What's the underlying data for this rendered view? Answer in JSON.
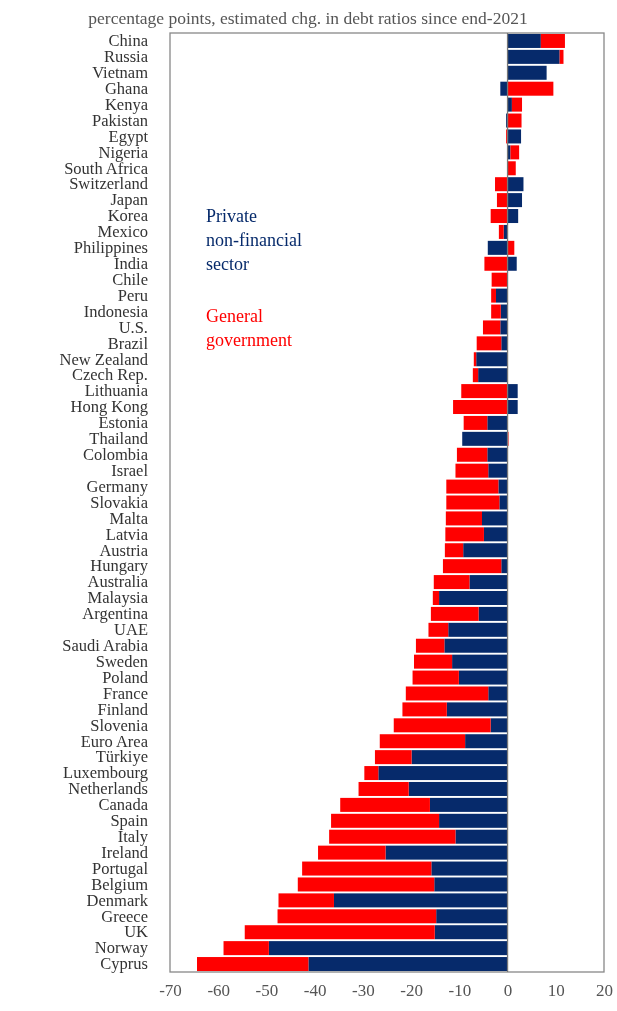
{
  "chart_data": {
    "type": "bar",
    "orientation": "horizontal",
    "stacked": true,
    "title": "percentage points, estimated chg. in debt ratios since end-2021",
    "categories": [
      "China",
      "Russia",
      "Vietnam",
      "Ghana",
      "Kenya",
      "Pakistan",
      "Egypt",
      "Nigeria",
      "South Africa",
      "Switzerland",
      "Japan",
      "Korea",
      "Mexico",
      "Philippines",
      "India",
      "Chile",
      "Peru",
      "Indonesia",
      "U.S.",
      "Brazil",
      "New Zealand",
      "Czech Rep.",
      "Lithuania",
      "Hong Kong",
      "Estonia",
      "Thailand",
      "Colombia",
      "Israel",
      "Germany",
      "Slovakia",
      "Malta",
      "Latvia",
      "Austria",
      "Hungary",
      "Australia",
      "Malaysia",
      "Argentina",
      "UAE",
      "Saudi Arabia",
      "Sweden",
      "Poland",
      "France",
      "Finland",
      "Slovenia",
      "Euro Area",
      "Türkiye",
      "Luxembourg",
      "Netherlands",
      "Canada",
      "Spain",
      "Italy",
      "Ireland",
      "Portugal",
      "Belgium",
      "Denmark",
      "Greece",
      "UK",
      "Norway",
      "Cyprus"
    ],
    "series": [
      {
        "name": "Private non-financial sector",
        "color": "#062a6b",
        "values": [
          6.9,
          10.8,
          8.1,
          -1.5,
          0.9,
          -0.3,
          2.8,
          0.6,
          0,
          3.3,
          3.0,
          2.2,
          -0.8,
          -4.1,
          1.9,
          0,
          -2.4,
          -1.4,
          -1.5,
          -1.3,
          -6.5,
          -6.1,
          2.1,
          2.1,
          -4.2,
          -9.4,
          -4.2,
          -4.0,
          -1.9,
          -1.7,
          -5.3,
          -4.9,
          -9.2,
          -1.3,
          -7.9,
          -14.2,
          -6.0,
          -12.3,
          -13.1,
          -11.5,
          -10.1,
          -4.0,
          -12.6,
          -3.5,
          -8.8,
          -19.9,
          -26.8,
          -20.5,
          -16.1,
          -14.2,
          -10.8,
          -25.3,
          -15.8,
          -15.2,
          -36.0,
          -14.8,
          -15.1,
          -49.5,
          -41.3
        ]
      },
      {
        "name": "General government",
        "color": "#ff0000",
        "values": [
          5.0,
          0.8,
          0,
          9.5,
          2.1,
          2.9,
          -0.3,
          1.8,
          1.7,
          -2.6,
          -2.2,
          -3.5,
          -1.0,
          1.4,
          -4.8,
          -3.3,
          -1.0,
          -2.0,
          -3.6,
          -5.1,
          -0.5,
          -1.1,
          -9.6,
          -11.3,
          -4.9,
          0.2,
          -6.3,
          -6.8,
          -10.8,
          -11.0,
          -7.5,
          -8.0,
          -3.8,
          -12.1,
          -7.4,
          -1.3,
          -9.9,
          -4.1,
          -5.9,
          -7.9,
          -9.6,
          -17.1,
          -9.2,
          -20.1,
          -17.7,
          -7.6,
          -2.9,
          -10.4,
          -18.6,
          -22.4,
          -26.2,
          -14.0,
          -26.8,
          -28.3,
          -11.5,
          -32.9,
          -39.4,
          -9.4,
          -23.1
        ]
      }
    ],
    "xlim": [
      -70,
      20
    ],
    "xticks": [
      -70,
      -60,
      -50,
      -40,
      -30,
      -20,
      -10,
      0,
      10,
      20
    ],
    "legend": "left"
  }
}
